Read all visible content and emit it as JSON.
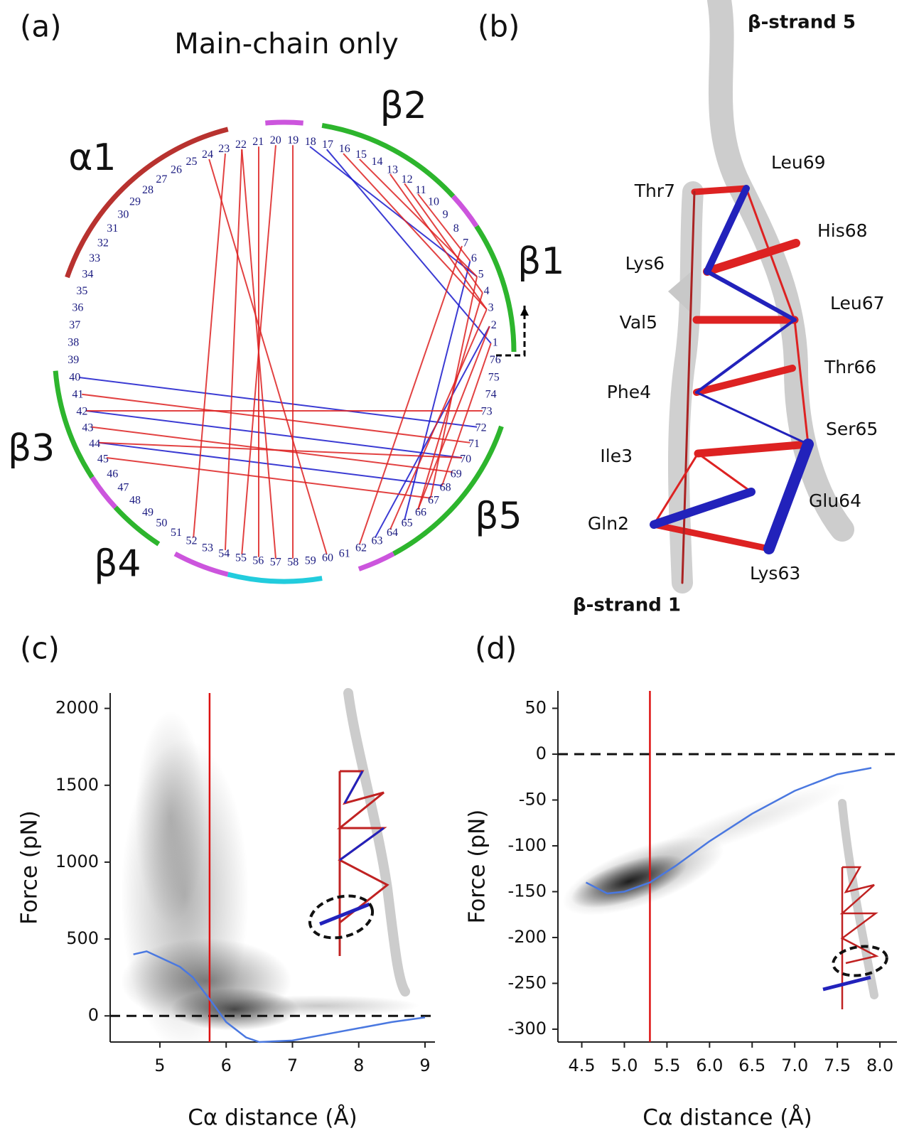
{
  "panel_labels": [
    "(a)",
    "(b)",
    "(c)",
    "(d)"
  ],
  "panel_a": {
    "title": "Main-chain only",
    "residues": [
      1,
      2,
      3,
      4,
      5,
      6,
      7,
      8,
      9,
      10,
      11,
      12,
      13,
      14,
      15,
      16,
      17,
      18,
      19,
      20,
      21,
      22,
      23,
      24,
      25,
      26,
      27,
      28,
      29,
      30,
      31,
      32,
      33,
      34,
      35,
      36,
      37,
      38,
      39,
      40,
      41,
      42,
      43,
      44,
      45,
      46,
      47,
      48,
      49,
      50,
      51,
      52,
      53,
      54,
      55,
      56,
      57,
      58,
      59,
      60,
      61,
      62,
      63,
      64,
      65,
      66,
      67,
      68,
      69,
      70,
      71,
      72,
      73,
      74,
      75,
      76
    ],
    "segments": [
      {
        "label": "α1",
        "start": 23,
        "end": 34,
        "color": "#b8322f"
      },
      {
        "label": "β2",
        "start": 10,
        "end": 17,
        "color": "#2db52d"
      },
      {
        "label": "β1",
        "start": 1,
        "end": 7,
        "color": "#2db52d"
      },
      {
        "label": "β3",
        "start": 40,
        "end": 45,
        "color": "#2db52d"
      },
      {
        "label": "β4",
        "start": 48,
        "end": 50,
        "color": "#2db52d"
      },
      {
        "label": "β5",
        "start": 64,
        "end": 72,
        "color": "#2db52d"
      }
    ],
    "loop_arcs": [
      {
        "start": 19,
        "end": 20,
        "color": "#cc55dd"
      },
      {
        "start": 8,
        "end": 9,
        "color": "#cc55dd"
      },
      {
        "start": 46,
        "end": 47,
        "color": "#cc55dd"
      },
      {
        "start": 52,
        "end": 54,
        "color": "#cc55dd"
      },
      {
        "start": 62,
        "end": 63,
        "color": "#cc55dd"
      },
      {
        "start": 55,
        "end": 59,
        "color": "#22ccdd"
      }
    ],
    "contacts": [
      {
        "pair": [
          17,
          1
        ],
        "color": "#1a1acc"
      },
      {
        "pair": [
          18,
          5
        ],
        "color": "#1a1acc"
      },
      {
        "pair": [
          40,
          72
        ],
        "color": "#1a1acc"
      },
      {
        "pair": [
          44,
          68
        ],
        "color": "#1a1acc"
      },
      {
        "pair": [
          42,
          70
        ],
        "color": "#1a1acc"
      },
      {
        "pair": [
          6,
          65
        ],
        "color": "#1a1acc"
      },
      {
        "pair": [
          63,
          2
        ],
        "color": "#1a1acc"
      },
      {
        "pair": [
          22,
          54
        ],
        "color": "#dd2222"
      },
      {
        "pair": [
          21,
          56
        ],
        "color": "#dd2222"
      },
      {
        "pair": [
          23,
          52
        ],
        "color": "#dd2222"
      },
      {
        "pair": [
          19,
          58
        ],
        "color": "#dd2222"
      },
      {
        "pair": [
          20,
          55
        ],
        "color": "#dd2222"
      },
      {
        "pair": [
          15,
          5
        ],
        "color": "#dd2222"
      },
      {
        "pair": [
          13,
          3
        ],
        "color": "#dd2222"
      },
      {
        "pair": [
          11,
          6
        ],
        "color": "#dd2222"
      },
      {
        "pair": [
          12,
          4
        ],
        "color": "#dd2222"
      },
      {
        "pair": [
          41,
          71
        ],
        "color": "#dd2222"
      },
      {
        "pair": [
          43,
          69
        ],
        "color": "#dd2222"
      },
      {
        "pair": [
          42,
          73
        ],
        "color": "#dd2222"
      },
      {
        "pair": [
          45,
          67
        ],
        "color": "#dd2222"
      },
      {
        "pair": [
          2,
          66
        ],
        "color": "#dd2222"
      },
      {
        "pair": [
          3,
          64
        ],
        "color": "#dd2222"
      },
      {
        "pair": [
          4,
          66
        ],
        "color": "#dd2222"
      },
      {
        "pair": [
          1,
          68
        ],
        "color": "#dd2222"
      },
      {
        "pair": [
          5,
          67
        ],
        "color": "#dd2222"
      },
      {
        "pair": [
          24,
          60
        ],
        "color": "#dd2222"
      },
      {
        "pair": [
          22,
          57
        ],
        "color": "#dd2222"
      },
      {
        "pair": [
          16,
          3
        ],
        "color": "#dd2222"
      },
      {
        "pair": [
          44,
          70
        ],
        "color": "#dd2222"
      },
      {
        "pair": [
          7,
          62
        ],
        "color": "#dd2222"
      }
    ]
  },
  "panel_b": {
    "strand_top": "β-strand 5",
    "strand_bottom": "β-strand 1",
    "residue_labels": [
      "Leu69",
      "Thr7",
      "His68",
      "Lys6",
      "Leu67",
      "Val5",
      "Thr66",
      "Phe4",
      "Ser65",
      "Ile3",
      "Glu64",
      "Gln2",
      "Lys63"
    ]
  },
  "chart_data": [
    {
      "type": "line",
      "x_label": "Cα distance (Å)",
      "y_label": "Force (pN)",
      "xlim": [
        4.25,
        9.15
      ],
      "ylim": [
        -170,
        2100
      ],
      "xticks": [
        5,
        6,
        7,
        8,
        9
      ],
      "yticks": [
        0,
        500,
        1000,
        1500,
        2000
      ],
      "series": [
        {
          "color": "#4a78e0",
          "x": [
            4.6,
            4.8,
            5.0,
            5.3,
            5.5,
            5.8,
            6.0,
            6.3,
            6.5,
            7.0,
            7.5,
            8.0,
            8.5,
            9.0
          ],
          "values": [
            400,
            420,
            380,
            320,
            250,
            80,
            -40,
            -140,
            -170,
            -160,
            -120,
            -80,
            -40,
            -10
          ]
        }
      ],
      "vline": 5.75,
      "vline_color": "#dd1111",
      "hline": 0
    },
    {
      "type": "line",
      "x_label": "Cα distance (Å)",
      "y_label": "Force (pN)",
      "xlim": [
        4.22,
        8.2
      ],
      "ylim": [
        -314,
        69
      ],
      "xticks": [
        4.5,
        {
          "value": 5,
          "label": "5.0"
        },
        5.5,
        {
          "value": 6,
          "label": "6.0"
        },
        6.5,
        {
          "value": 7,
          "label": "7.0"
        },
        7.5,
        {
          "value": 8,
          "label": "8.0"
        }
      ],
      "yticks": [
        50,
        0,
        -50,
        -100,
        -150,
        -200,
        -250,
        -300
      ],
      "series": [
        {
          "color": "#4a78e0",
          "x": [
            4.55,
            4.8,
            5.0,
            5.3,
            5.6,
            6.0,
            6.5,
            7.0,
            7.5,
            7.9
          ],
          "values": [
            -140,
            -152,
            -150,
            -140,
            -122,
            -95,
            -65,
            -40,
            -22,
            -15
          ]
        }
      ],
      "vline": 5.3,
      "vline_color": "#dd1111",
      "hline": 0
    }
  ]
}
